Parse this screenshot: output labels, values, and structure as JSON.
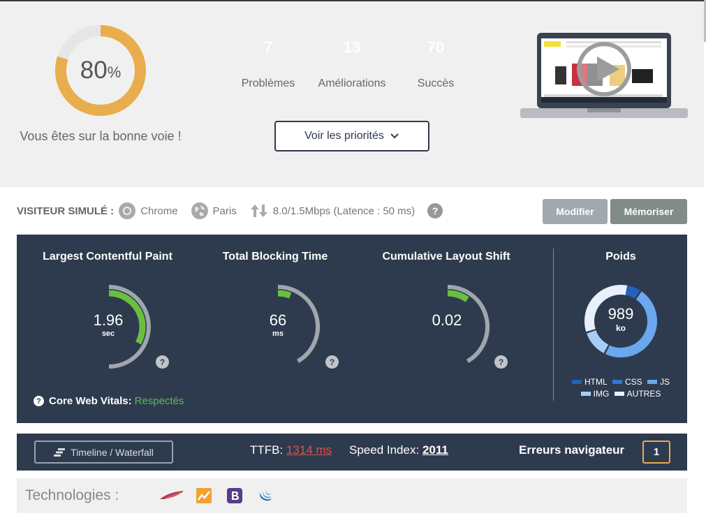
{
  "summary": {
    "score_value": "80",
    "score_percent_sign": "%",
    "score_fraction": 0.8,
    "verdict": "Vous êtes sur la bonne voie !",
    "counts": [
      {
        "value": "7",
        "label": "Problèmes",
        "color": "#d24d4d"
      },
      {
        "value": "13",
        "label": "Améliorations",
        "color": "#e8ad4c"
      },
      {
        "value": "70",
        "label": "Succès",
        "color": "#9ea7a7"
      }
    ],
    "priorities_button": "Voir les priorités"
  },
  "visitor": {
    "title": "VISITEUR SIMULÉ :",
    "browser": "Chrome",
    "location": "Paris",
    "connection": "8.0/1.5Mbps (Latence : 50 ms)",
    "help": "?",
    "modify_button": "Modifier",
    "remember_button": "Mémoriser"
  },
  "metrics": {
    "lcp": {
      "title": "Largest Contentful Paint",
      "value": "1.96",
      "unit": "sec",
      "level": 0.55
    },
    "tbt": {
      "title": "Total Blocking Time",
      "value": "66",
      "unit": "ms",
      "level": 0.12
    },
    "cls": {
      "title": "Cumulative Layout Shift",
      "value": "0.02",
      "unit": "",
      "level": 0.2
    },
    "help": "?",
    "core_web_vitals_label": "Core Web Vitals:",
    "core_web_vitals_status": "Respectés",
    "weight": {
      "title": "Poids",
      "value": "989",
      "unit": "ko",
      "legend": [
        {
          "label": "HTML",
          "color": "#2461b8"
        },
        {
          "label": "CSS",
          "color": "#2e78d8"
        },
        {
          "label": "JS",
          "color": "#6aa7ee"
        },
        {
          "label": "IMG",
          "color": "#a8cdf5"
        },
        {
          "label": "AUTRES",
          "color": "#e8f1fb"
        }
      ]
    },
    "accent_green": "#6abf40",
    "track_grey": "#a0a6ad"
  },
  "bottombar": {
    "timeline_button": "Timeline / Waterfall",
    "ttfb_label": "TTFB:",
    "ttfb_value": "1314 ms",
    "speed_label": "Speed Index:",
    "speed_value": "2011",
    "errors_label": "Erreurs navigateur",
    "errors_count": "1"
  },
  "technologies": {
    "label": "Technologies :",
    "icons": [
      "apache-feather-icon",
      "analytics-chart-icon",
      "bootstrap-icon",
      "jquery-icon"
    ]
  }
}
